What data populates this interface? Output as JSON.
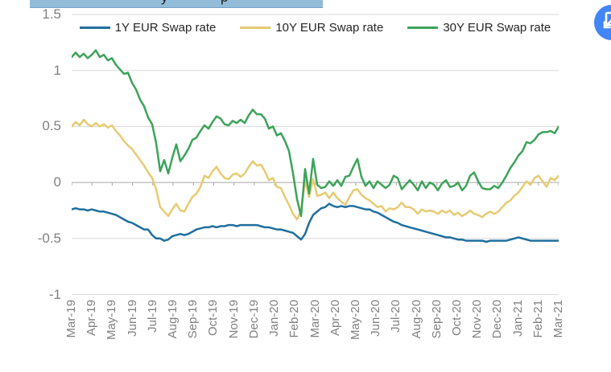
{
  "header": {
    "highlight_color": "#92bcd8",
    "clipped_title_fragments": [
      "y",
      "p"
    ]
  },
  "floating_icon": {
    "circle_color": "#4285f4",
    "glyph_color": "#ffffff"
  },
  "chart_data": {
    "type": "line",
    "title": "",
    "grid": "horizontal",
    "legend_position": "top",
    "ylim": [
      -1,
      1.5
    ],
    "y_ticks": [
      1.5,
      1,
      0.5,
      0,
      -0.5,
      -1
    ],
    "y_tick_labels": [
      "1.5",
      "1",
      "0.5",
      "0",
      "-0.5",
      "-1"
    ],
    "gridline_color": "#d9d9d9",
    "axis_color": "#a6a6a6",
    "label_color": "#808080",
    "x_labels": [
      "Mar-19",
      "Apr-19",
      "May-19",
      "Jun-19",
      "Jul-19",
      "Aug-19",
      "Sep-19",
      "Oct-19",
      "Nov-19",
      "Dec-19",
      "Jan-20",
      "Feb-20",
      "Mar-20",
      "Apr-20",
      "May-20",
      "Jun-20",
      "Jul-20",
      "Aug-20",
      "Sep-20",
      "Oct-20",
      "Nov-20",
      "Dec-20",
      "Jan-21",
      "Feb-21",
      "Mar-21"
    ],
    "series": [
      {
        "name": "1Y EUR Swap rate",
        "color": "#1f6f9e",
        "values": [
          -0.24,
          -0.23,
          -0.24,
          -0.24,
          -0.25,
          -0.24,
          -0.25,
          -0.26,
          -0.26,
          -0.27,
          -0.28,
          -0.29,
          -0.31,
          -0.33,
          -0.35,
          -0.36,
          -0.38,
          -0.4,
          -0.42,
          -0.42,
          -0.47,
          -0.5,
          -0.5,
          -0.52,
          -0.51,
          -0.48,
          -0.47,
          -0.46,
          -0.47,
          -0.46,
          -0.44,
          -0.42,
          -0.41,
          -0.4,
          -0.4,
          -0.39,
          -0.4,
          -0.39,
          -0.39,
          -0.38,
          -0.38,
          -0.39,
          -0.38,
          -0.38,
          -0.38,
          -0.38,
          -0.38,
          -0.39,
          -0.4,
          -0.4,
          -0.41,
          -0.42,
          -0.42,
          -0.43,
          -0.44,
          -0.45,
          -0.48,
          -0.51,
          -0.46,
          -0.36,
          -0.29,
          -0.26,
          -0.23,
          -0.22,
          -0.19,
          -0.21,
          -0.22,
          -0.21,
          -0.22,
          -0.21,
          -0.21,
          -0.22,
          -0.23,
          -0.24,
          -0.24,
          -0.26,
          -0.27,
          -0.29,
          -0.31,
          -0.33,
          -0.35,
          -0.36,
          -0.38,
          -0.39,
          -0.4,
          -0.41,
          -0.42,
          -0.43,
          -0.44,
          -0.45,
          -0.46,
          -0.47,
          -0.48,
          -0.49,
          -0.49,
          -0.5,
          -0.51,
          -0.51,
          -0.52,
          -0.52,
          -0.52,
          -0.52,
          -0.52,
          -0.53,
          -0.52,
          -0.52,
          -0.52,
          -0.52,
          -0.52,
          -0.51,
          -0.5,
          -0.49,
          -0.5,
          -0.51,
          -0.52,
          -0.52,
          -0.52,
          -0.52,
          -0.52,
          -0.52,
          -0.52,
          -0.52
        ]
      },
      {
        "name": "10Y EUR Swap rate",
        "color": "#e6cb72",
        "values": [
          0.5,
          0.54,
          0.51,
          0.56,
          0.52,
          0.5,
          0.53,
          0.5,
          0.52,
          0.49,
          0.51,
          0.46,
          0.42,
          0.37,
          0.33,
          0.3,
          0.25,
          0.2,
          0.15,
          0.09,
          0.04,
          -0.06,
          -0.22,
          -0.26,
          -0.3,
          -0.24,
          -0.19,
          -0.25,
          -0.26,
          -0.19,
          -0.13,
          -0.1,
          -0.04,
          0.06,
          0.04,
          0.1,
          0.14,
          0.08,
          0.04,
          0.03,
          0.07,
          0.08,
          0.05,
          0.08,
          0.14,
          0.19,
          0.15,
          0.16,
          0.1,
          0.02,
          0.04,
          -0.04,
          -0.05,
          -0.13,
          -0.2,
          -0.28,
          -0.33,
          -0.25,
          0.02,
          -0.13,
          0.03,
          -0.12,
          -0.11,
          -0.09,
          -0.14,
          -0.09,
          -0.14,
          -0.17,
          -0.2,
          -0.13,
          -0.07,
          -0.06,
          -0.11,
          -0.14,
          -0.16,
          -0.19,
          -0.22,
          -0.21,
          -0.26,
          -0.23,
          -0.24,
          -0.22,
          -0.18,
          -0.22,
          -0.22,
          -0.24,
          -0.28,
          -0.24,
          -0.26,
          -0.25,
          -0.26,
          -0.28,
          -0.25,
          -0.27,
          -0.25,
          -0.29,
          -0.27,
          -0.3,
          -0.28,
          -0.25,
          -0.28,
          -0.29,
          -0.31,
          -0.28,
          -0.26,
          -0.28,
          -0.26,
          -0.22,
          -0.18,
          -0.16,
          -0.12,
          -0.09,
          -0.04,
          0.01,
          -0.02,
          0.04,
          0.06,
          0.01,
          -0.04,
          0.04,
          0.02,
          0.06
        ]
      },
      {
        "name": "30Y EUR Swap rate",
        "color": "#3da35a",
        "values": [
          1.12,
          1.16,
          1.12,
          1.15,
          1.11,
          1.14,
          1.18,
          1.12,
          1.14,
          1.09,
          1.11,
          1.05,
          1.01,
          0.97,
          0.98,
          0.89,
          0.83,
          0.74,
          0.68,
          0.58,
          0.52,
          0.35,
          0.1,
          0.2,
          0.08,
          0.22,
          0.34,
          0.19,
          0.24,
          0.3,
          0.38,
          0.4,
          0.46,
          0.51,
          0.48,
          0.54,
          0.59,
          0.57,
          0.52,
          0.51,
          0.55,
          0.53,
          0.56,
          0.53,
          0.6,
          0.65,
          0.61,
          0.61,
          0.57,
          0.48,
          0.5,
          0.42,
          0.44,
          0.37,
          0.28,
          0.08,
          -0.15,
          -0.3,
          0.12,
          -0.1,
          0.21,
          -0.02,
          -0.05,
          -0.04,
          0.01,
          -0.03,
          0.02,
          -0.03,
          0.05,
          0.06,
          0.14,
          0.21,
          0.05,
          -0.03,
          0.01,
          -0.05,
          0.01,
          -0.02,
          -0.05,
          -0.02,
          0.06,
          0.04,
          -0.06,
          -0.02,
          0.02,
          -0.02,
          -0.07,
          0.01,
          -0.05,
          0.0,
          -0.02,
          -0.07,
          -0.01,
          0.02,
          -0.04,
          -0.03,
          0.0,
          -0.07,
          -0.03,
          0.06,
          0.09,
          0.01,
          -0.05,
          -0.06,
          -0.06,
          -0.03,
          -0.05,
          0.0,
          0.06,
          0.13,
          0.18,
          0.24,
          0.28,
          0.36,
          0.35,
          0.38,
          0.43,
          0.45,
          0.45,
          0.46,
          0.44,
          0.5
        ]
      }
    ]
  }
}
